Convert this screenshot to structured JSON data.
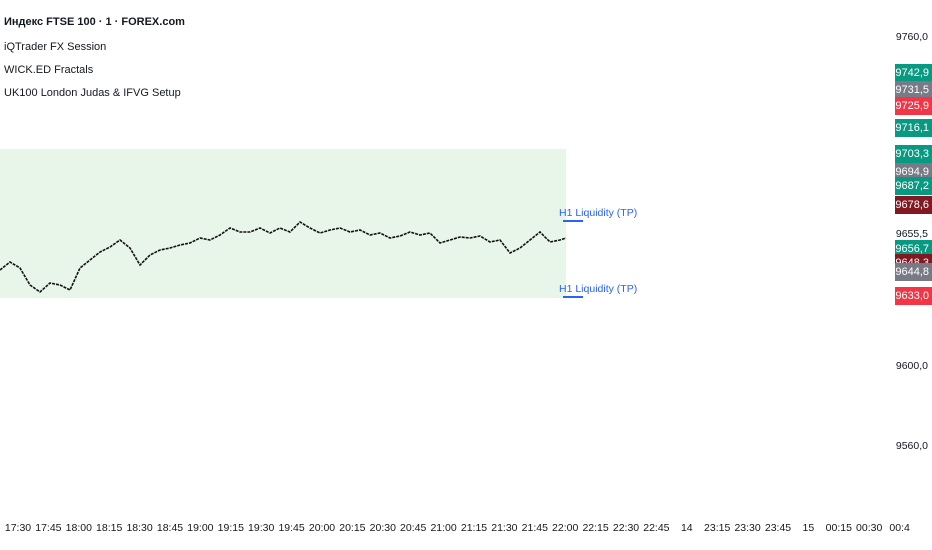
{
  "legend": {
    "symbol": "Индекс FTSE 100 · 1 · FOREX.com",
    "indicators": [
      "iQTrader FX Session",
      "WICK.ED Fractals",
      "UK100 London Judas & IFVG Setup"
    ]
  },
  "price_axis": {
    "labels": [
      "9760,0",
      "9600,0",
      "9560,0"
    ],
    "current": "9655,5",
    "tags": [
      "9742,9",
      "9731,5",
      "9725,9",
      "9716,1",
      "9703,3",
      "9694,9",
      "9687,2",
      "9678,6",
      "9656,7",
      "9648,3",
      "9644,8",
      "9633,0"
    ]
  },
  "annotations": [
    "H1 Liquidity (TP)",
    "H1 Liquidity (TP)"
  ],
  "time_axis": [
    "17:30",
    "17:45",
    "18:00",
    "18:15",
    "18:30",
    "18:45",
    "19:00",
    "19:15",
    "19:30",
    "19:45",
    "20:00",
    "20:15",
    "20:30",
    "20:45",
    "21:00",
    "21:15",
    "21:30",
    "21:45",
    "22:00",
    "22:15",
    "22:30",
    "22:45",
    "14",
    "23:15",
    "23:30",
    "23:45",
    "15",
    "00:15",
    "00:30",
    "00:4"
  ]
}
